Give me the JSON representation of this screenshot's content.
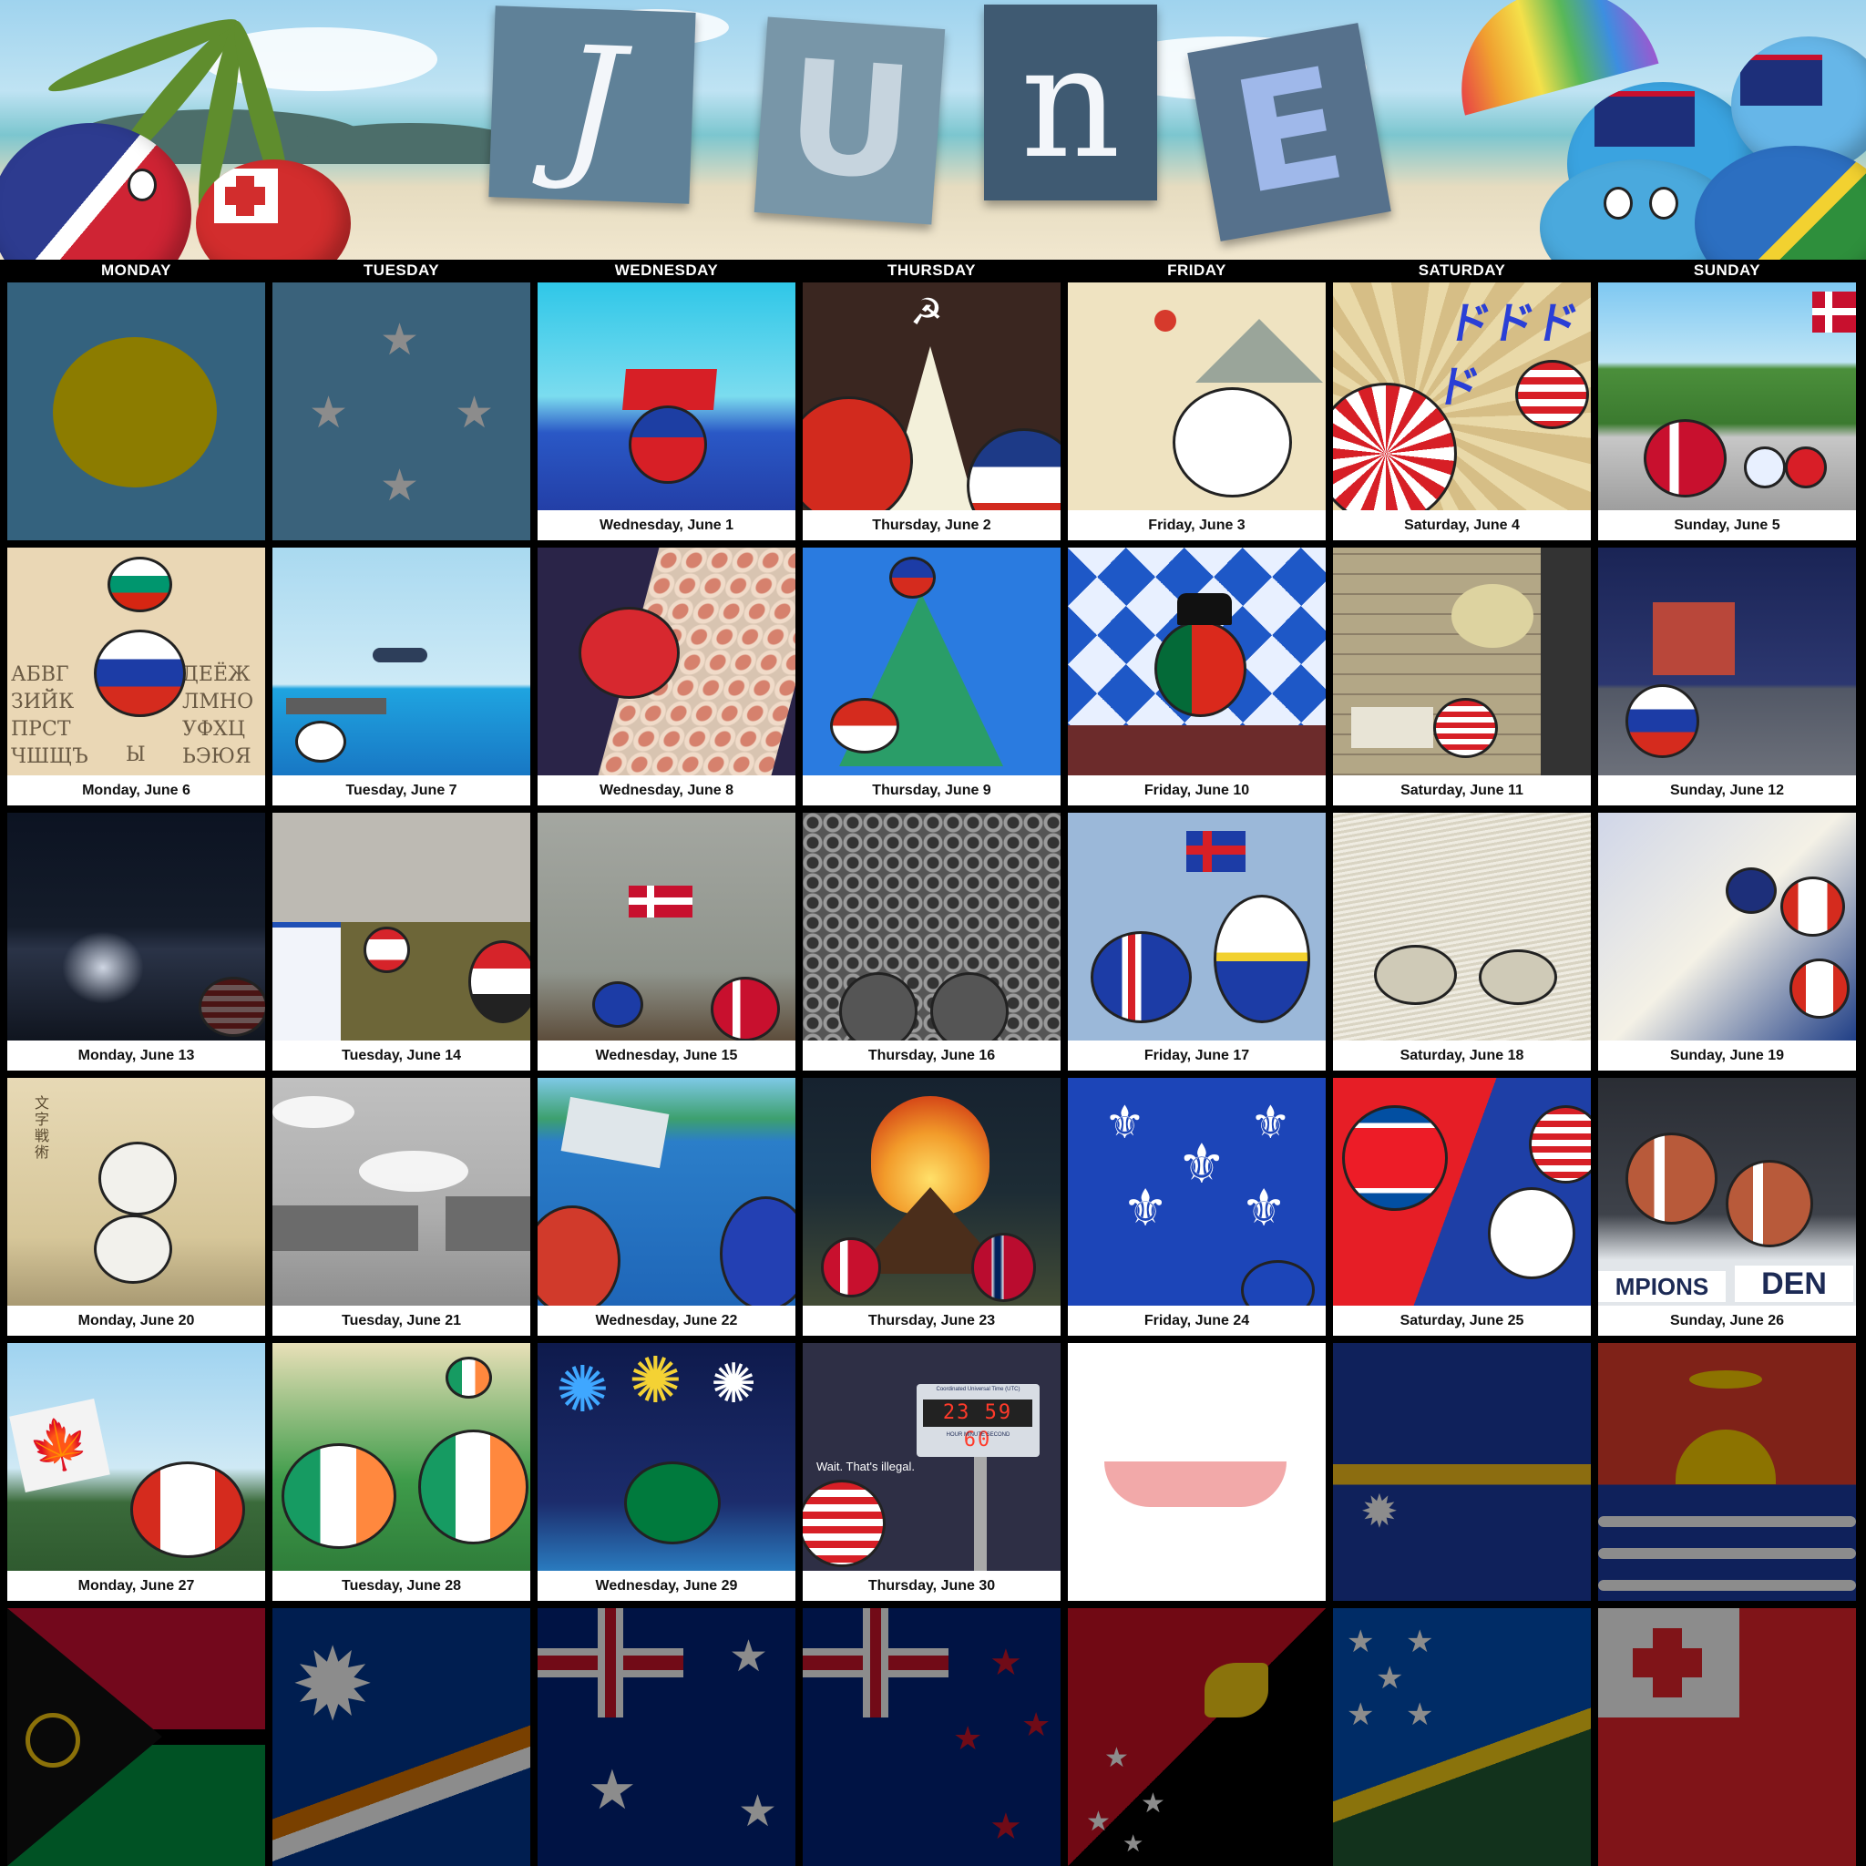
{
  "title_letters": [
    "J",
    "U",
    "n",
    "E"
  ],
  "weekdays": [
    "MONDAY",
    "TUESDAY",
    "WEDNESDAY",
    "THURSDAY",
    "FRIDAY",
    "SATURDAY",
    "SUNDAY"
  ],
  "cells": [
    {
      "label": "",
      "theme": "palau-flag"
    },
    {
      "label": "",
      "theme": "micronesia-flag"
    },
    {
      "label": "Wednesday, June 1",
      "theme": "samoa-sea"
    },
    {
      "label": "Thursday, June 2",
      "theme": "soviet-red"
    },
    {
      "label": "Friday, June 3",
      "theme": "korea-ink"
    },
    {
      "label": "Saturday, June 4",
      "theme": "japan-sunburst"
    },
    {
      "label": "Sunday, June 5",
      "theme": "denmark-grill"
    },
    {
      "label": "Monday, June 6",
      "theme": "bulgaria-cyrillic"
    },
    {
      "label": "Tuesday, June 7",
      "theme": "japan-sky-ship"
    },
    {
      "label": "Wednesday, June 8",
      "theme": "hongkong-crowd"
    },
    {
      "label": "Thursday, June 9",
      "theme": "indonesia-reef"
    },
    {
      "label": "Friday, June 10",
      "theme": "portugal-tiles"
    },
    {
      "label": "Saturday, June 11",
      "theme": "usa-cell"
    },
    {
      "label": "Sunday, June 12",
      "theme": "russia-night"
    },
    {
      "label": "Monday, June 13",
      "theme": "usa-night-city"
    },
    {
      "label": "Tuesday, June 14",
      "theme": "lebanon-ruins"
    },
    {
      "label": "Wednesday, June 15",
      "theme": "denmark-crowd"
    },
    {
      "label": "Thursday, June 16",
      "theme": "sweden-stadium"
    },
    {
      "label": "Friday, June 17",
      "theme": "iceland-flag"
    },
    {
      "label": "Saturday, June 18",
      "theme": "sketch-landscape"
    },
    {
      "label": "Sunday, June 19",
      "theme": "canada-uk-collage"
    },
    {
      "label": "Monday, June 20",
      "theme": "ancient-battle"
    },
    {
      "label": "Tuesday, June 21",
      "theme": "gray-ships"
    },
    {
      "label": "Wednesday, June 22",
      "theme": "sinking-ship"
    },
    {
      "label": "Thursday, June 23",
      "theme": "bonfire"
    },
    {
      "label": "Friday, June 24",
      "theme": "quebec-flag"
    },
    {
      "label": "Saturday, June 25",
      "theme": "korea-war"
    },
    {
      "label": "Sunday, June 26",
      "theme": "denmark-balls"
    },
    {
      "label": "Monday, June 27",
      "theme": "canada-flag"
    },
    {
      "label": "Tuesday, June 28",
      "theme": "ireland-soldiers"
    },
    {
      "label": "Wednesday, June 29",
      "theme": "seychelles-fireworks"
    },
    {
      "label": "Thursday, June 30",
      "theme": "usa-clock"
    },
    {
      "label": "",
      "theme": "easter-island-flag"
    },
    {
      "label": "",
      "theme": "nauru-flag"
    },
    {
      "label": "",
      "theme": "kiribati-flag"
    },
    {
      "label": "",
      "theme": "vanuatu-flag"
    },
    {
      "label": "",
      "theme": "marshall-flag"
    },
    {
      "label": "",
      "theme": "australia-flag"
    },
    {
      "label": "",
      "theme": "newzealand-flag"
    },
    {
      "label": "",
      "theme": "png-flag"
    },
    {
      "label": "",
      "theme": "solomon-flag"
    },
    {
      "label": "",
      "theme": "tonga-flag"
    }
  ],
  "texts": {
    "illegal_caption": "Wait. That's illegal.",
    "clock_digits": "23 59 60",
    "clock_title": "Coordinated Universal Time (UTC)",
    "clock_units": "HOUR  MINUTE  SECOND",
    "cyrillic_left": "АБВГ ЗИЙК ПРСТ ЧШЩЪ",
    "cyrillic_right": "ДЕЁЖ ЛМНО УФХЦ ЬЭЮЯ",
    "cyrillic_mid": "Ы",
    "katakana": "ドドドド",
    "champions_text": "MPIONS",
    "den_text": "DEN",
    "battle_kanji": "文字 戦術"
  }
}
